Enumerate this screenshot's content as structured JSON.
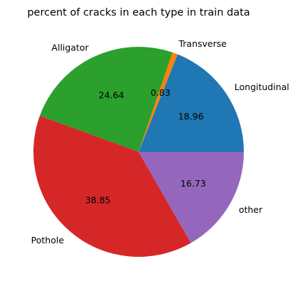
{
  "chart_data": {
    "type": "pie",
    "title": "percent of cracks in each type in train data",
    "categories": [
      "Longitudinal",
      "Transverse",
      "Alligator",
      "Pothole",
      "other"
    ],
    "values": [
      18.96,
      0.83,
      24.64,
      38.85,
      16.73
    ],
    "value_labels": [
      "18.96",
      "0.83",
      "24.64",
      "38.85",
      "16.73"
    ],
    "colors": [
      "#1f77b4",
      "#ff7f0e",
      "#2ca02c",
      "#d62728",
      "#9467bd"
    ],
    "start_angle_deg": 0,
    "direction": "counterclockwise",
    "legend": "none"
  }
}
